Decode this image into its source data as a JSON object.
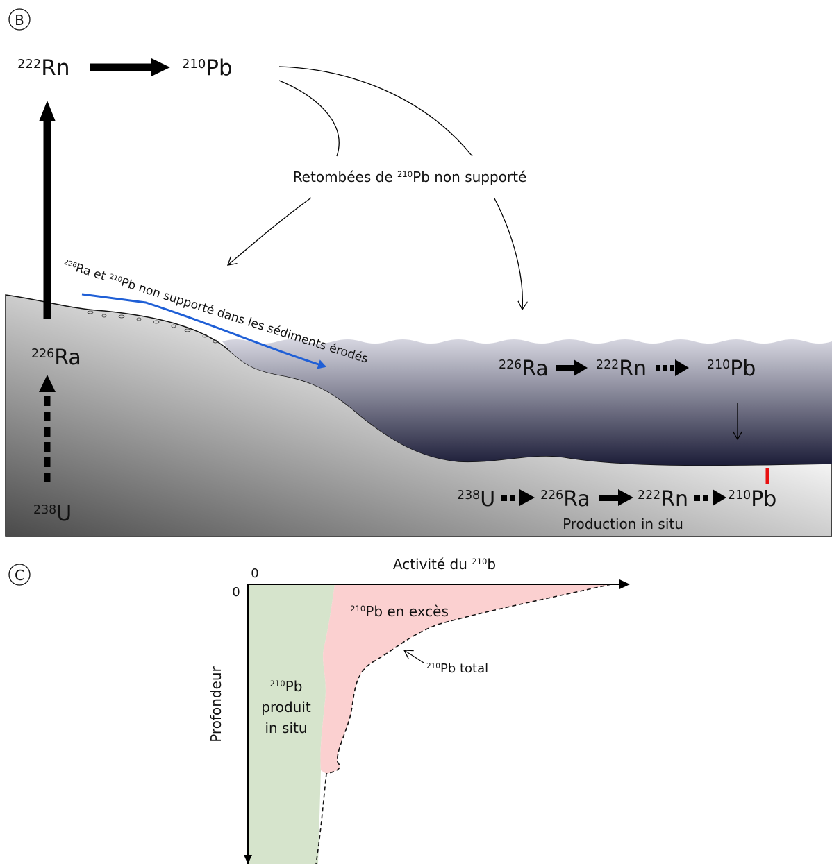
{
  "panel_b": {
    "label": "B",
    "atmosphere": {
      "rn222": [
        {
          "sup": "222"
        },
        {
          "text": "Rn"
        }
      ],
      "pb210": [
        {
          "sup": "210"
        },
        {
          "text": "Pb"
        }
      ]
    },
    "fallout_label": [
      {
        "text": "Retombées de "
      },
      {
        "sup": "210"
      },
      {
        "text": "Pb non supporté"
      }
    ],
    "erosion_label": [
      {
        "sup": "226"
      },
      {
        "text": "Ra et "
      },
      {
        "sup": "210"
      },
      {
        "text": "Pb non supporté dans les sédiments érodés"
      }
    ],
    "soil": {
      "ra226": [
        {
          "sup": "226"
        },
        {
          "text": "Ra"
        }
      ],
      "u238": [
        {
          "sup": "238"
        },
        {
          "text": "U"
        }
      ]
    },
    "lake_chain": [
      [
        {
          "sup": "226"
        },
        {
          "text": "Ra"
        }
      ],
      [
        {
          "sup": "222"
        },
        {
          "text": "Rn"
        }
      ],
      [
        {
          "sup": "210"
        },
        {
          "text": "Pb"
        }
      ]
    ],
    "sediment_chain": [
      [
        {
          "sup": "238"
        },
        {
          "text": "U"
        }
      ],
      [
        {
          "sup": "226"
        },
        {
          "text": "Ra"
        }
      ],
      [
        {
          "sup": "222"
        },
        {
          "text": "Rn"
        }
      ],
      [
        {
          "sup": "210"
        },
        {
          "text": "Pb"
        }
      ]
    ],
    "sediment_caption": "Production in situ"
  },
  "panel_c": {
    "label": "C",
    "x_axis_title": [
      {
        "text": "Activité du "
      },
      {
        "sup": "210"
      },
      {
        "text": "b"
      }
    ],
    "x_origin": "0",
    "y_origin": "0",
    "y_axis_title": "Profondeur",
    "excess_label": [
      {
        "sup": "210"
      },
      {
        "text": "Pb en excès"
      }
    ],
    "total_label": [
      {
        "sup": "210"
      },
      {
        "text": "Pb total"
      }
    ],
    "in_situ_label": [
      [
        {
          "sup": "210"
        },
        {
          "text": "Pb"
        }
      ],
      [
        {
          "text": "produit"
        }
      ],
      [
        {
          "text": "in situ"
        }
      ]
    ]
  }
}
